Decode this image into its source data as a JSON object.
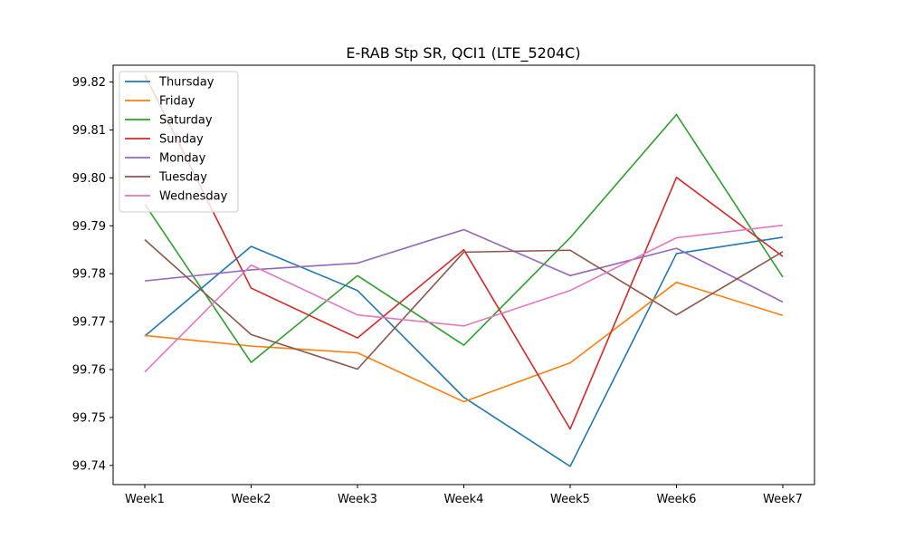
{
  "chart_data": {
    "type": "line",
    "title": "E-RAB Stp SR, QCI1 (LTE_5204C)",
    "xlabel": "",
    "ylabel": "",
    "categories": [
      "Week1",
      "Week2",
      "Week3",
      "Week4",
      "Week5",
      "Week6",
      "Week7"
    ],
    "ylim": [
      99.736,
      99.8235
    ],
    "yticks": [
      "99.74",
      "99.75",
      "99.76",
      "99.77",
      "99.78",
      "99.79",
      "99.80",
      "99.81",
      "99.82"
    ],
    "grid": false,
    "legend_position": "top-left",
    "series": [
      {
        "name": "Thursday",
        "color": "#1f77b4",
        "values": [
          99.767,
          99.7857,
          99.7765,
          99.7542,
          99.7398,
          99.7842,
          99.7876
        ]
      },
      {
        "name": "Friday",
        "color": "#ff7f0e",
        "values": [
          99.7671,
          99.7649,
          99.7635,
          99.7533,
          99.7614,
          99.7782,
          99.7713
        ]
      },
      {
        "name": "Saturday",
        "color": "#2ca02c",
        "values": [
          99.7945,
          99.7615,
          99.7796,
          99.7651,
          99.7875,
          99.8132,
          99.7793
        ]
      },
      {
        "name": "Sunday",
        "color": "#d62728",
        "values": [
          99.8215,
          99.777,
          99.7666,
          99.785,
          99.7476,
          99.8001,
          99.7836
        ]
      },
      {
        "name": "Monday",
        "color": "#9467bd",
        "values": [
          99.7785,
          99.7808,
          99.7822,
          99.7892,
          99.7796,
          99.7853,
          99.7741
        ]
      },
      {
        "name": "Tuesday",
        "color": "#8c564b",
        "values": [
          99.7871,
          99.7673,
          99.7601,
          99.7845,
          99.7849,
          99.7714,
          99.7846
        ]
      },
      {
        "name": "Wednesday",
        "color": "#e377c2",
        "values": [
          99.7595,
          99.7818,
          99.7714,
          99.7691,
          99.7765,
          99.7875,
          99.7901
        ]
      }
    ]
  }
}
